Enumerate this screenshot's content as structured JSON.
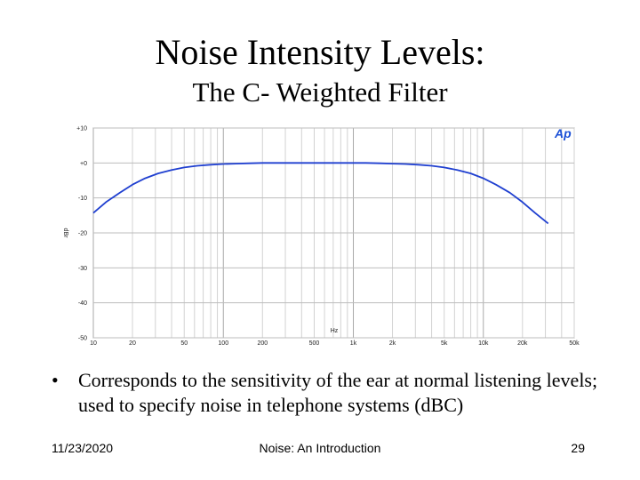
{
  "slide": {
    "title": "Noise Intensity Levels:",
    "subtitle": "The C- Weighted Filter",
    "bullet_marker": "•",
    "bullet": "Corresponds to the sensitivity of the ear at normal listening levels; used to specify noise in telephone systems (dBC)",
    "footer_date": "11/23/2020",
    "footer_center": "Noise: An Introduction",
    "footer_page": "29"
  },
  "chart_data": {
    "type": "line",
    "title": "",
    "xlabel": "Hz",
    "ylabel": "dBr",
    "xscale": "log",
    "xlim": [
      10,
      50000
    ],
    "ylim": [
      -50,
      10
    ],
    "grid": true,
    "legend": "none",
    "logo_text": "Ap",
    "line_color": "#1f3fd0",
    "x_ticks": [
      10,
      20,
      50,
      100,
      200,
      500,
      1000,
      2000,
      5000,
      10000,
      20000,
      50000
    ],
    "x_tick_labels": [
      "10",
      "20",
      "50",
      "100",
      "200",
      "500",
      "1k",
      "2k",
      "5k",
      "10k",
      "20k",
      "50k"
    ],
    "y_ticks": [
      10,
      0,
      -10,
      -20,
      -30,
      -40,
      -50
    ],
    "y_tick_labels": [
      "+10",
      "+0",
      "-10",
      "-20",
      "-30",
      "-40",
      "-50"
    ],
    "series": [
      {
        "name": "C-weighting",
        "x": [
          10,
          12.5,
          16,
          20,
          25,
          31.5,
          40,
          50,
          63,
          80,
          100,
          125,
          160,
          200,
          250,
          315,
          400,
          500,
          630,
          800,
          1000,
          1250,
          1600,
          2000,
          2500,
          3150,
          4000,
          5000,
          6300,
          8000,
          10000,
          12500,
          16000,
          20000,
          25000,
          31500
        ],
        "y": [
          -14.3,
          -11.2,
          -8.5,
          -6.2,
          -4.4,
          -3.0,
          -2.0,
          -1.3,
          -0.8,
          -0.5,
          -0.3,
          -0.2,
          -0.1,
          0,
          0,
          0,
          0,
          0,
          0,
          0,
          0,
          0,
          -0.1,
          -0.2,
          -0.3,
          -0.5,
          -0.8,
          -1.3,
          -2.0,
          -3.0,
          -4.4,
          -6.2,
          -8.5,
          -11.2,
          -14.3,
          -17.3
        ]
      }
    ]
  }
}
